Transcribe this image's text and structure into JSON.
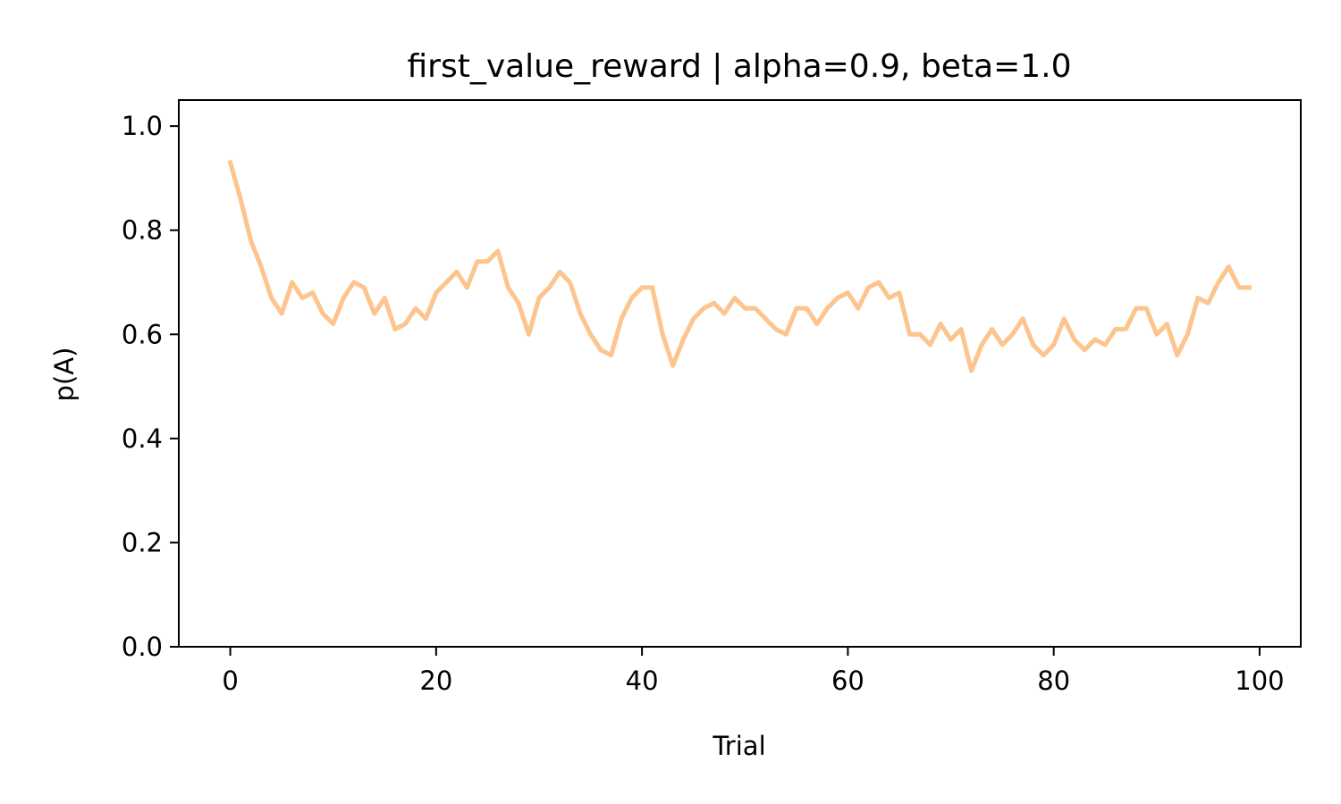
{
  "chart_data": {
    "type": "line",
    "title": "first_value_reward | alpha=0.9, beta=1.0",
    "xlabel": "Trial",
    "ylabel": "p(A)",
    "xlim": [
      -5,
      104
    ],
    "ylim": [
      0.0,
      1.05
    ],
    "xticks": [
      0,
      20,
      40,
      60,
      80,
      100
    ],
    "xtick_labels": [
      "0",
      "20",
      "40",
      "60",
      "80",
      "100"
    ],
    "yticks": [
      0.0,
      0.2,
      0.4,
      0.6,
      0.8,
      1.0
    ],
    "ytick_labels": [
      "0.0",
      "0.2",
      "0.4",
      "0.6",
      "0.8",
      "1.0"
    ],
    "grid": false,
    "line_color": "#fdc48e",
    "series": [
      {
        "x": [
          0,
          1,
          2,
          3,
          4,
          5,
          6,
          7,
          8,
          9,
          10,
          11,
          12,
          13,
          14,
          15,
          16,
          17,
          18,
          19,
          20,
          21,
          22,
          23,
          24,
          25,
          26,
          27,
          28,
          29,
          30,
          31,
          32,
          33,
          34,
          35,
          36,
          37,
          38,
          39,
          40,
          41,
          42,
          43,
          44,
          45,
          46,
          47,
          48,
          49,
          50,
          51,
          52,
          53,
          54,
          55,
          56,
          57,
          58,
          59,
          60,
          61,
          62,
          63,
          64,
          65,
          66,
          67,
          68,
          69,
          70,
          71,
          72,
          73,
          74,
          75,
          76,
          77,
          78,
          79,
          80,
          81,
          82,
          83,
          84,
          85,
          86,
          87,
          88,
          89,
          90,
          91,
          92,
          93,
          94,
          95,
          96,
          97,
          98,
          99
        ],
        "values": [
          0.93,
          0.86,
          0.78,
          0.73,
          0.67,
          0.64,
          0.7,
          0.67,
          0.68,
          0.64,
          0.62,
          0.67,
          0.7,
          0.69,
          0.64,
          0.67,
          0.61,
          0.62,
          0.65,
          0.63,
          0.68,
          0.7,
          0.72,
          0.69,
          0.74,
          0.74,
          0.76,
          0.69,
          0.66,
          0.6,
          0.67,
          0.69,
          0.72,
          0.7,
          0.64,
          0.6,
          0.57,
          0.56,
          0.63,
          0.67,
          0.69,
          0.69,
          0.6,
          0.54,
          0.59,
          0.63,
          0.65,
          0.66,
          0.64,
          0.67,
          0.65,
          0.65,
          0.63,
          0.61,
          0.6,
          0.65,
          0.65,
          0.62,
          0.65,
          0.67,
          0.68,
          0.65,
          0.69,
          0.7,
          0.67,
          0.68,
          0.6,
          0.6,
          0.58,
          0.62,
          0.59,
          0.61,
          0.53,
          0.58,
          0.61,
          0.58,
          0.6,
          0.63,
          0.58,
          0.56,
          0.58,
          0.63,
          0.59,
          0.57,
          0.59,
          0.58,
          0.61,
          0.61,
          0.65,
          0.65,
          0.6,
          0.62,
          0.56,
          0.6,
          0.67,
          0.66,
          0.7,
          0.73,
          0.69,
          0.69
        ]
      }
    ]
  }
}
